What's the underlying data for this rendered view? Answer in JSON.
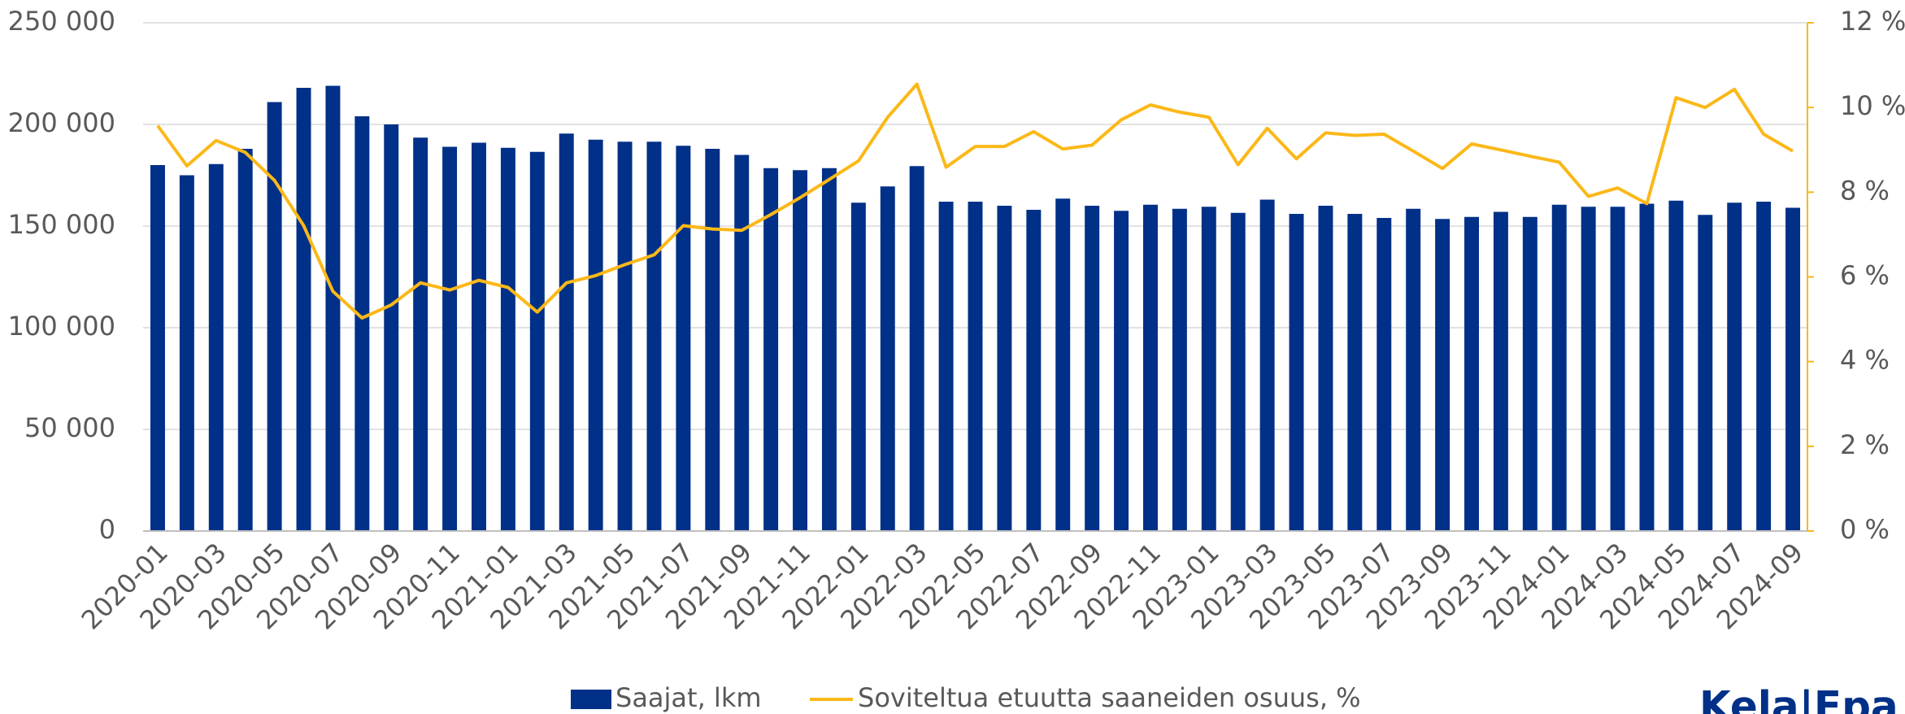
{
  "chart_data": {
    "type": "bar",
    "categories": [
      "2020-01",
      null,
      "2020-03",
      null,
      "2020-05",
      null,
      "2020-07",
      null,
      "2020-09",
      null,
      "2020-11",
      null,
      "2021-01",
      null,
      "2021-03",
      null,
      "2021-05",
      null,
      "2021-07",
      null,
      "2021-09",
      null,
      "2021-11",
      null,
      "2022-01",
      null,
      "2022-03",
      null,
      "2022-05",
      null,
      "2022-07",
      null,
      "2022-09",
      null,
      "2022-11",
      null,
      "2023-01",
      null,
      "2023-03",
      null,
      "2023-05",
      null,
      "2023-07",
      null,
      "2023-09",
      null,
      "2023-11",
      null,
      "2024-01",
      null,
      "2024-03",
      null,
      "2024-05",
      null,
      "2024-07",
      null,
      "2024-09"
    ],
    "series": [
      {
        "name": "Saajat, lkm",
        "type": "bar",
        "color": "#003087",
        "values": [
          180000,
          175000,
          180500,
          188000,
          211000,
          218000,
          219000,
          204000,
          200000,
          193500,
          189000,
          191000,
          188500,
          186500,
          195500,
          192500,
          191500,
          191500,
          189500,
          188000,
          185000,
          178500,
          177500,
          178500,
          161500,
          169500,
          179500,
          162000,
          162000,
          160000,
          158000,
          163500,
          160000,
          157500,
          160500,
          158500,
          159500,
          156500,
          163000,
          156000,
          160000,
          156000,
          154000,
          158500,
          153500,
          154500,
          157000,
          154500,
          160500,
          159500,
          159500,
          161000,
          162500,
          155500,
          161500,
          162000,
          159000
        ]
      },
      {
        "name": "Soviteltua etuutta saaneiden osuus, %",
        "type": "line",
        "axis": "y2",
        "color": "#fbb818",
        "values": [
          9.57,
          8.62,
          9.22,
          8.94,
          8.28,
          7.21,
          5.66,
          5.03,
          5.34,
          5.86,
          5.69,
          5.92,
          5.75,
          5.17,
          5.86,
          6.03,
          6.29,
          6.52,
          7.21,
          7.13,
          7.1,
          7.47,
          7.87,
          8.3,
          8.74,
          9.77,
          10.55,
          8.59,
          9.08,
          9.08,
          9.43,
          9.02,
          9.11,
          9.71,
          10.06,
          9.89,
          9.77,
          8.65,
          9.51,
          8.79,
          9.4,
          9.34,
          9.37,
          8.97,
          8.56,
          9.14,
          9.0,
          8.85,
          8.71,
          7.9,
          8.1,
          7.73,
          10.23,
          10.0,
          10.43,
          9.37,
          8.97
        ]
      }
    ],
    "ylim": [
      0,
      250000
    ],
    "yticks": [
      0,
      {
        "value": 50000,
        "label": "50 000"
      },
      {
        "value": 100000,
        "label": "100 000"
      },
      {
        "value": 150000,
        "label": "150 000"
      },
      {
        "value": 200000,
        "label": "200 000"
      },
      {
        "value": 250000,
        "label": "250 000"
      }
    ],
    "y2lim": [
      0,
      12
    ],
    "y2ticks": [
      {
        "value": 0,
        "label": "0 %"
      },
      {
        "value": 2,
        "label": "2 %"
      },
      {
        "value": 4,
        "label": "4 %"
      },
      {
        "value": 6,
        "label": "6 %"
      },
      {
        "value": 8,
        "label": "8 %"
      },
      {
        "value": 10,
        "label": "10 %"
      },
      {
        "value": 12,
        "label": "12 %"
      }
    ],
    "grid": true,
    "legend": "bottom"
  },
  "logo": "Kela|Fpa"
}
